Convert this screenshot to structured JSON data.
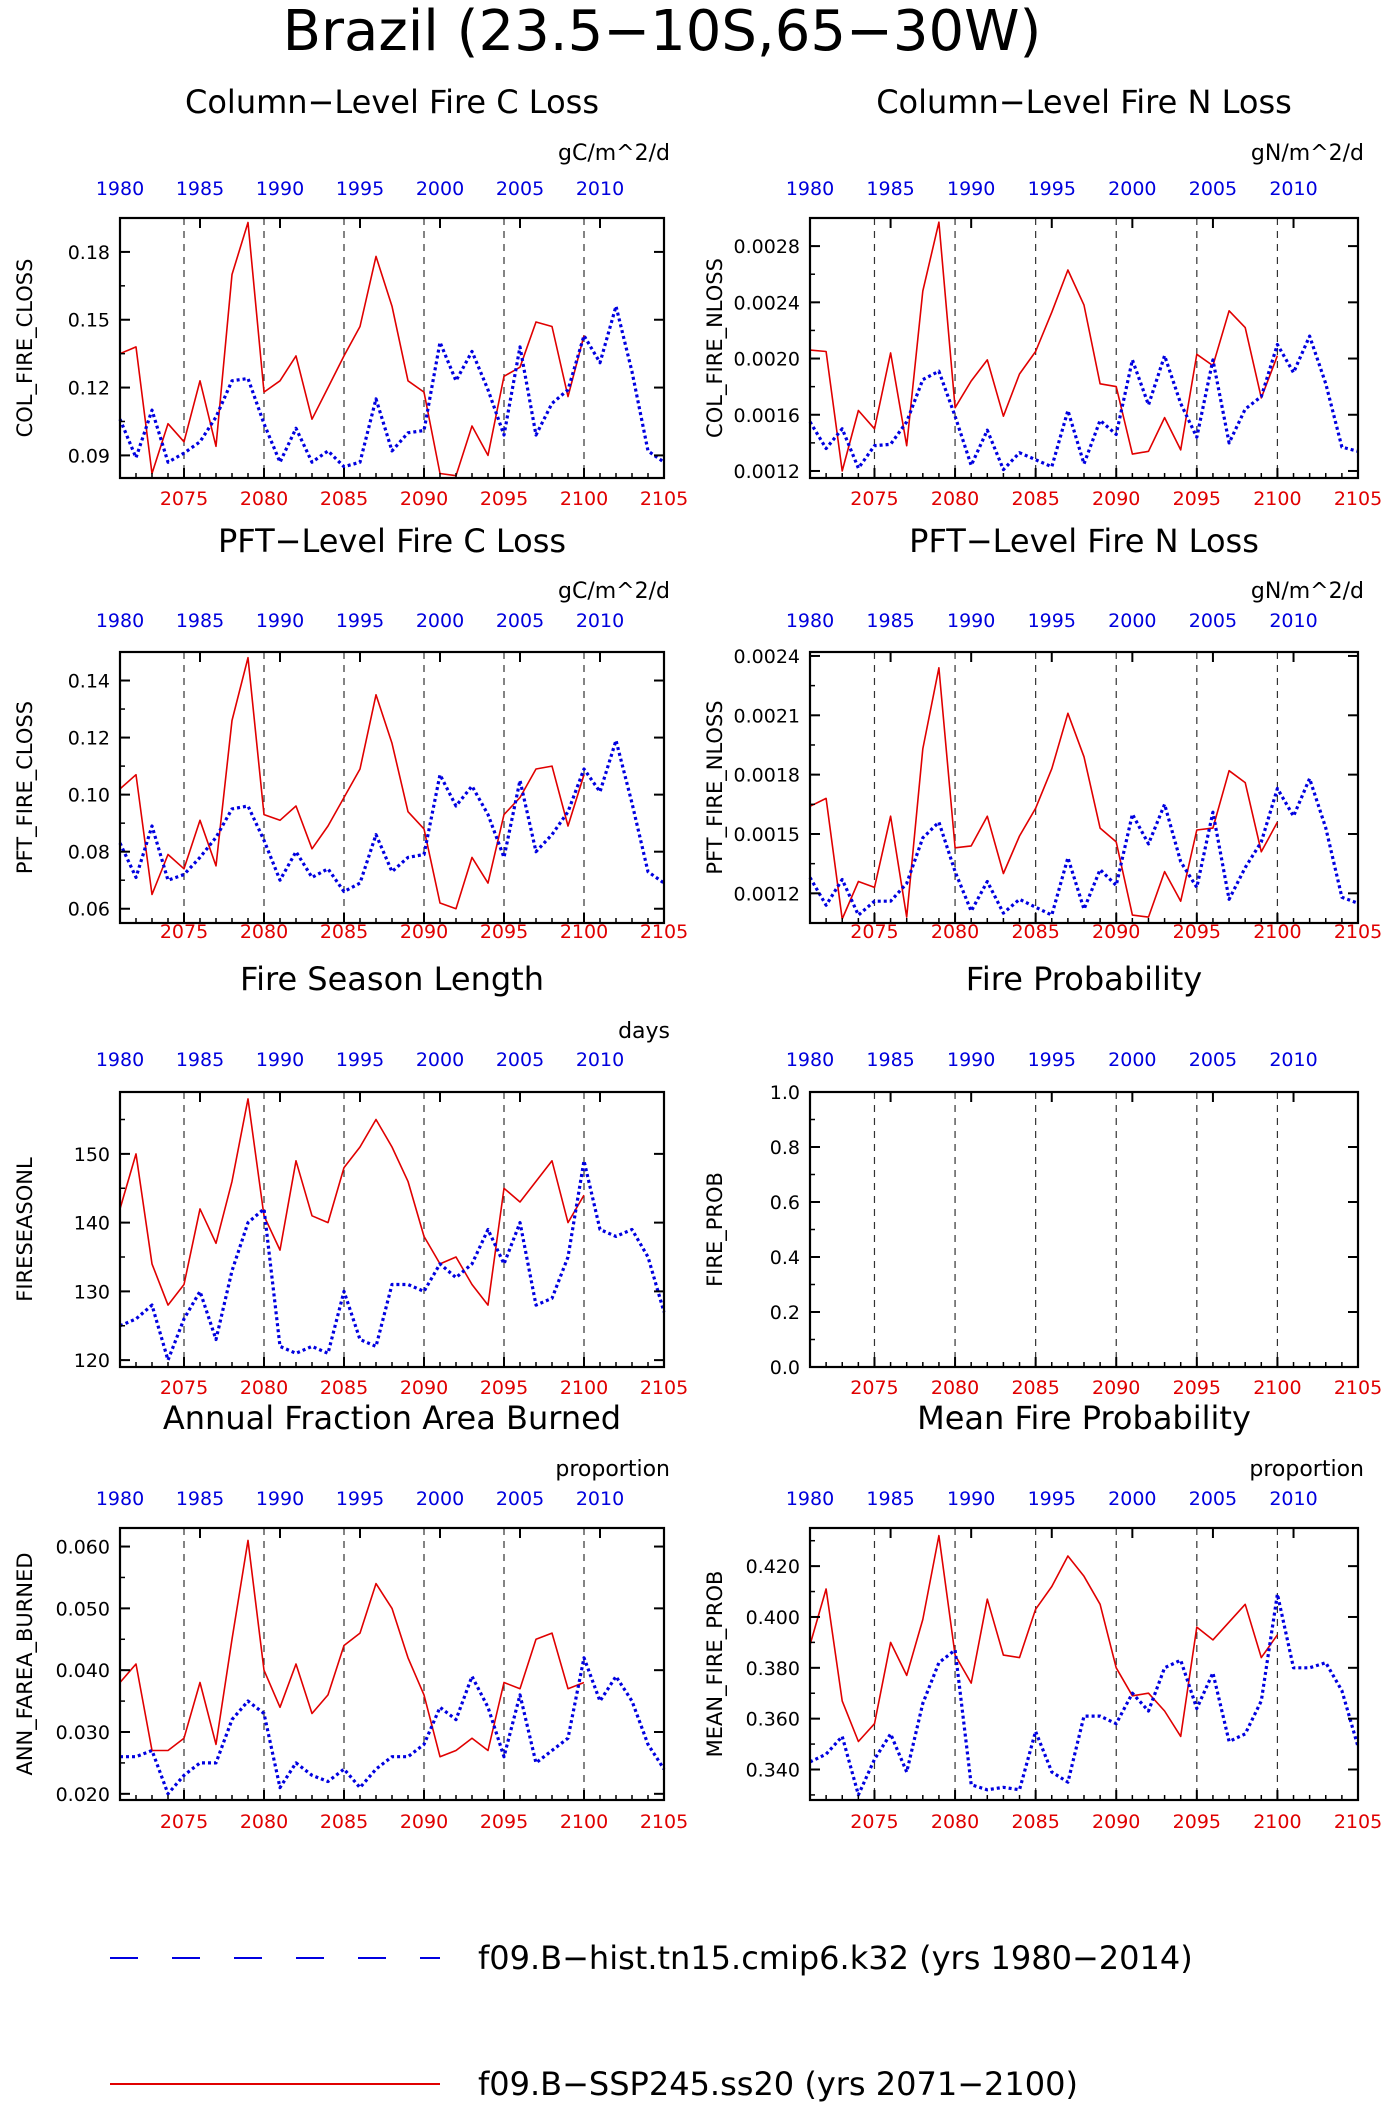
{
  "figure": {
    "title": "Brazil (23.5−10S,65−30W)"
  },
  "colors": {
    "hist": "#0000e0",
    "ssp": "#e00000"
  },
  "legend": [
    {
      "label": "f09.B−hist.tn15.cmip6.k32 (yrs 1980−2014)",
      "color": "#0000e0",
      "style": "dashed"
    },
    {
      "label": "f09.B−SSP245.ss20 (yrs 2071−2100)",
      "color": "#e00000",
      "style": "solid"
    }
  ],
  "chart_data": [
    {
      "type": "line",
      "title": "Column−Level Fire C Loss",
      "units": "gC/m^2/d",
      "ylabel": "COL_FIRE_CLOSS",
      "ylim": [
        0.08,
        0.195
      ],
      "yticks": [
        0.09,
        0.12,
        0.15,
        0.18
      ],
      "ytick_labels": [
        "0.09",
        "0.12",
        "0.15",
        "0.18"
      ],
      "xlim_bottom": [
        2071,
        2105
      ],
      "xticks_bottom": [
        "2075",
        "2080",
        "2085",
        "2090",
        "2095",
        "2100",
        "2105"
      ],
      "xticks_top": [
        "1980",
        "1985",
        "1990",
        "1995",
        "2000",
        "2005",
        "2010"
      ],
      "series": [
        {
          "name": "f09.B−SSP245.ss20",
          "style": "solid",
          "x_start": 2071,
          "values": [
            0.135,
            0.138,
            0.082,
            0.104,
            0.096,
            0.123,
            0.094,
            0.17,
            0.193,
            0.118,
            0.123,
            0.134,
            0.106,
            0.12,
            0.134,
            0.147,
            0.178,
            0.156,
            0.123,
            0.118,
            0.082,
            0.081,
            0.103,
            0.09,
            0.125,
            0.129,
            0.149,
            0.147,
            0.116,
            0.143
          ]
        },
        {
          "name": "f09.B−hist.tn15.cmip6.k32",
          "style": "dashed",
          "x_start": 2071,
          "values": [
            0.106,
            0.089,
            0.11,
            0.087,
            0.091,
            0.096,
            0.107,
            0.123,
            0.124,
            0.104,
            0.087,
            0.102,
            0.087,
            0.092,
            0.085,
            0.087,
            0.115,
            0.092,
            0.1,
            0.101,
            0.14,
            0.123,
            0.136,
            0.119,
            0.099,
            0.138,
            0.099,
            0.113,
            0.119,
            0.143,
            0.131,
            0.156,
            0.127,
            0.092,
            0.087
          ]
        }
      ]
    },
    {
      "type": "line",
      "title": "Column−Level Fire N Loss",
      "units": "gN/m^2/d",
      "ylabel": "COL_FIRE_NLOSS",
      "ylim": [
        0.00115,
        0.003
      ],
      "yticks": [
        0.0012,
        0.0016,
        0.002,
        0.0024,
        0.0028
      ],
      "ytick_labels": [
        "0.0012",
        "0.0016",
        "0.0020",
        "0.0024",
        "0.0028"
      ],
      "xlim_bottom": [
        2071,
        2105
      ],
      "xticks_bottom": [
        "2075",
        "2080",
        "2085",
        "2090",
        "2095",
        "2100",
        "2105"
      ],
      "xticks_top": [
        "1980",
        "1985",
        "1990",
        "1995",
        "2000",
        "2005",
        "2010"
      ],
      "series": [
        {
          "name": "f09.B−SSP245.ss20",
          "style": "solid",
          "x_start": 2071,
          "values": [
            0.00206,
            0.00205,
            0.0012,
            0.00163,
            0.0015,
            0.00204,
            0.00138,
            0.00248,
            0.00297,
            0.00165,
            0.00184,
            0.00199,
            0.00159,
            0.00189,
            0.00205,
            0.00233,
            0.00263,
            0.00238,
            0.00182,
            0.0018,
            0.00132,
            0.00134,
            0.00158,
            0.00135,
            0.00203,
            0.00195,
            0.00234,
            0.00222,
            0.00172,
            0.00202
          ]
        },
        {
          "name": "f09.B−hist.tn15.cmip6.k32",
          "style": "dashed",
          "x_start": 2071,
          "values": [
            0.00155,
            0.00136,
            0.0015,
            0.00122,
            0.00138,
            0.00139,
            0.00155,
            0.00185,
            0.00191,
            0.00159,
            0.00124,
            0.00149,
            0.00121,
            0.00133,
            0.00128,
            0.00123,
            0.00163,
            0.00125,
            0.00156,
            0.00146,
            0.00199,
            0.00167,
            0.00202,
            0.00168,
            0.00144,
            0.00199,
            0.0014,
            0.00164,
            0.00173,
            0.0021,
            0.0019,
            0.00216,
            0.00182,
            0.00137,
            0.00134
          ]
        }
      ]
    },
    {
      "type": "line",
      "title": "PFT−Level Fire C Loss",
      "units": "gC/m^2/d",
      "ylabel": "PFT_FIRE_CLOSS",
      "ylim": [
        0.055,
        0.15
      ],
      "yticks": [
        0.06,
        0.08,
        0.1,
        0.12,
        0.14
      ],
      "ytick_labels": [
        "0.06",
        "0.08",
        "0.10",
        "0.12",
        "0.14"
      ],
      "xlim_bottom": [
        2071,
        2105
      ],
      "xticks_bottom": [
        "2075",
        "2080",
        "2085",
        "2090",
        "2095",
        "2100",
        "2105"
      ],
      "xticks_top": [
        "1980",
        "1985",
        "1990",
        "1995",
        "2000",
        "2005",
        "2010"
      ],
      "series": [
        {
          "name": "f09.B−SSP245.ss20",
          "style": "solid",
          "x_start": 2071,
          "values": [
            0.102,
            0.107,
            0.065,
            0.079,
            0.074,
            0.091,
            0.075,
            0.126,
            0.148,
            0.093,
            0.091,
            0.096,
            0.081,
            0.089,
            0.099,
            0.109,
            0.135,
            0.118,
            0.094,
            0.088,
            0.062,
            0.06,
            0.078,
            0.069,
            0.093,
            0.099,
            0.109,
            0.11,
            0.089,
            0.107
          ]
        },
        {
          "name": "f09.B−hist.tn15.cmip6.k32",
          "style": "dashed",
          "x_start": 2071,
          "values": [
            0.083,
            0.071,
            0.089,
            0.07,
            0.072,
            0.078,
            0.085,
            0.095,
            0.096,
            0.084,
            0.07,
            0.08,
            0.071,
            0.074,
            0.066,
            0.069,
            0.086,
            0.073,
            0.078,
            0.079,
            0.107,
            0.096,
            0.103,
            0.093,
            0.078,
            0.105,
            0.08,
            0.086,
            0.094,
            0.109,
            0.101,
            0.119,
            0.097,
            0.073,
            0.069
          ]
        }
      ]
    },
    {
      "type": "line",
      "title": "PFT−Level Fire N Loss",
      "units": "gN/m^2/d",
      "ylabel": "PFT_FIRE_NLOSS",
      "ylim": [
        0.00105,
        0.00242
      ],
      "yticks": [
        0.0012,
        0.0015,
        0.0018,
        0.0021,
        0.0024
      ],
      "ytick_labels": [
        "0.0012",
        "0.0015",
        "0.0018",
        "0.0021",
        "0.0024"
      ],
      "xlim_bottom": [
        2071,
        2105
      ],
      "xticks_bottom": [
        "2075",
        "2080",
        "2085",
        "2090",
        "2095",
        "2100",
        "2105"
      ],
      "xticks_top": [
        "1980",
        "1985",
        "1990",
        "1995",
        "2000",
        "2005",
        "2010"
      ],
      "series": [
        {
          "name": "f09.B−SSP245.ss20",
          "style": "solid",
          "x_start": 2071,
          "values": [
            0.00164,
            0.00168,
            0.00107,
            0.00126,
            0.00123,
            0.00159,
            0.00108,
            0.00193,
            0.00234,
            0.00143,
            0.00144,
            0.00159,
            0.0013,
            0.00149,
            0.00163,
            0.00183,
            0.00211,
            0.00189,
            0.00153,
            0.00146,
            0.00109,
            0.00108,
            0.00131,
            0.00116,
            0.00152,
            0.00153,
            0.00182,
            0.00176,
            0.00141,
            0.00156
          ]
        },
        {
          "name": "f09.B−hist.tn15.cmip6.k32",
          "style": "dashed",
          "x_start": 2071,
          "values": [
            0.00128,
            0.00114,
            0.00127,
            0.00109,
            0.00116,
            0.00116,
            0.00125,
            0.00148,
            0.00156,
            0.00131,
            0.00111,
            0.00126,
            0.0011,
            0.00117,
            0.00113,
            0.00109,
            0.00138,
            0.00112,
            0.00132,
            0.00124,
            0.0016,
            0.00145,
            0.00165,
            0.00136,
            0.00123,
            0.00161,
            0.00117,
            0.00133,
            0.00146,
            0.00173,
            0.00159,
            0.00178,
            0.00153,
            0.00118,
            0.00115
          ]
        }
      ]
    },
    {
      "type": "line",
      "title": "Fire Season Length",
      "units": "days",
      "ylabel": "FIRESEASONL",
      "ylim": [
        119,
        159
      ],
      "yticks": [
        120,
        130,
        140,
        150
      ],
      "ytick_labels": [
        "120",
        "130",
        "140",
        "150"
      ],
      "xlim_bottom": [
        2071,
        2105
      ],
      "xticks_bottom": [
        "2075",
        "2080",
        "2085",
        "2090",
        "2095",
        "2100",
        "2105"
      ],
      "xticks_top": [
        "1980",
        "1985",
        "1990",
        "1995",
        "2000",
        "2005",
        "2010"
      ],
      "series": [
        {
          "name": "f09.B−SSP245.ss20",
          "style": "solid",
          "x_start": 2071,
          "values": [
            142,
            150,
            134,
            128,
            131,
            142,
            137,
            146,
            158,
            141,
            136,
            149,
            141,
            140,
            148,
            151,
            155,
            151,
            146,
            138,
            134,
            135,
            131,
            128,
            145,
            143,
            146,
            149,
            140,
            144
          ]
        },
        {
          "name": "f09.B−hist.tn15.cmip6.k32",
          "style": "dashed",
          "x_start": 2071,
          "values": [
            125,
            126,
            128,
            120,
            126,
            130,
            123,
            133,
            140,
            142,
            122,
            121,
            122,
            121,
            130,
            123,
            122,
            131,
            131,
            130,
            134,
            132,
            134,
            139,
            134,
            140,
            128,
            129,
            135,
            149,
            139,
            138,
            139,
            135,
            127
          ]
        }
      ]
    },
    {
      "type": "line",
      "title": "Fire Probability",
      "units": "",
      "ylabel": "FIRE_PROB",
      "ylim": [
        0,
        1
      ],
      "yticks": [
        0,
        0.2,
        0.4,
        0.6,
        0.8,
        1.0
      ],
      "ytick_labels": [
        "0.0",
        "0.2",
        "0.4",
        "0.6",
        "0.8",
        "1.0"
      ],
      "xlim_bottom": [
        2071,
        2105
      ],
      "xticks_bottom": [
        "2075",
        "2080",
        "2085",
        "2090",
        "2095",
        "2100",
        "2105"
      ],
      "xticks_top": [
        "1980",
        "1985",
        "1990",
        "1995",
        "2000",
        "2005",
        "2010"
      ],
      "series": []
    },
    {
      "type": "line",
      "title": "Annual Fraction Area Burned",
      "units": "proportion",
      "ylabel": "ANN_FAREA_BURNED",
      "ylim": [
        0.019,
        0.063
      ],
      "yticks": [
        0.02,
        0.03,
        0.04,
        0.05,
        0.06
      ],
      "ytick_labels": [
        "0.020",
        "0.030",
        "0.040",
        "0.050",
        "0.060"
      ],
      "xlim_bottom": [
        2071,
        2105
      ],
      "xticks_bottom": [
        "2075",
        "2080",
        "2085",
        "2090",
        "2095",
        "2100",
        "2105"
      ],
      "xticks_top": [
        "1980",
        "1985",
        "1990",
        "1995",
        "2000",
        "2005",
        "2010"
      ],
      "series": [
        {
          "name": "f09.B−SSP245.ss20",
          "style": "solid",
          "x_start": 2071,
          "values": [
            0.038,
            0.041,
            0.027,
            0.027,
            0.029,
            0.038,
            0.028,
            0.045,
            0.061,
            0.04,
            0.034,
            0.041,
            0.033,
            0.036,
            0.044,
            0.046,
            0.054,
            0.05,
            0.042,
            0.036,
            0.026,
            0.027,
            0.029,
            0.027,
            0.038,
            0.037,
            0.045,
            0.046,
            0.037,
            0.038
          ]
        },
        {
          "name": "f09.B−hist.tn15.cmip6.k32",
          "style": "dashed",
          "x_start": 2071,
          "values": [
            0.026,
            0.026,
            0.027,
            0.02,
            0.023,
            0.025,
            0.025,
            0.032,
            0.035,
            0.033,
            0.021,
            0.025,
            0.023,
            0.022,
            0.024,
            0.021,
            0.024,
            0.026,
            0.026,
            0.028,
            0.034,
            0.032,
            0.039,
            0.034,
            0.026,
            0.036,
            0.025,
            0.027,
            0.029,
            0.042,
            0.035,
            0.039,
            0.035,
            0.028,
            0.024
          ]
        }
      ]
    },
    {
      "type": "line",
      "title": "Mean Fire Probability",
      "units": "proportion",
      "ylabel": "MEAN_FIRE_PROB",
      "ylim": [
        0.328,
        0.435
      ],
      "yticks": [
        0.34,
        0.36,
        0.38,
        0.4,
        0.42
      ],
      "ytick_labels": [
        "0.340",
        "0.360",
        "0.380",
        "0.400",
        "0.420"
      ],
      "xlim_bottom": [
        2071,
        2105
      ],
      "xticks_bottom": [
        "2075",
        "2080",
        "2085",
        "2090",
        "2095",
        "2100",
        "2105"
      ],
      "xticks_top": [
        "1980",
        "1985",
        "1990",
        "1995",
        "2000",
        "2005",
        "2010"
      ],
      "series": [
        {
          "name": "f09.B−SSP245.ss20",
          "style": "solid",
          "x_start": 2071,
          "values": [
            0.389,
            0.411,
            0.367,
            0.351,
            0.358,
            0.39,
            0.377,
            0.399,
            0.432,
            0.385,
            0.374,
            0.407,
            0.385,
            0.384,
            0.403,
            0.412,
            0.424,
            0.416,
            0.405,
            0.38,
            0.369,
            0.37,
            0.363,
            0.353,
            0.396,
            0.391,
            0.398,
            0.405,
            0.384,
            0.393
          ]
        },
        {
          "name": "f09.B−hist.tn15.cmip6.k32",
          "style": "dashed",
          "x_start": 2071,
          "values": [
            0.343,
            0.346,
            0.353,
            0.33,
            0.344,
            0.354,
            0.339,
            0.366,
            0.382,
            0.387,
            0.334,
            0.332,
            0.333,
            0.332,
            0.355,
            0.339,
            0.335,
            0.361,
            0.361,
            0.358,
            0.37,
            0.363,
            0.38,
            0.383,
            0.364,
            0.378,
            0.351,
            0.354,
            0.367,
            0.409,
            0.38,
            0.38,
            0.382,
            0.371,
            0.349
          ]
        }
      ]
    }
  ]
}
